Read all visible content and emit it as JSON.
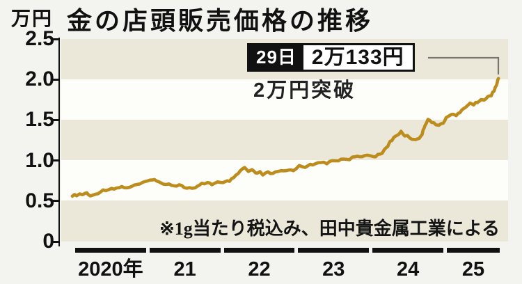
{
  "header": {
    "unit_label": "万円",
    "title": "金の店頭販売価格の推移"
  },
  "annotation": {
    "date_label": "29日",
    "price_label": "2万133円",
    "subtitle": "2万円突破"
  },
  "note": "※1g当たり税込み、田中貴金属工業による",
  "chart_data": {
    "type": "line",
    "title": "金の店頭販売価格の推移",
    "ylabel": "万円",
    "ylim": [
      0,
      2.5
    ],
    "yticks": [
      2.5,
      2.0,
      1.5,
      1.0,
      0.5,
      0
    ],
    "ytick_labels": [
      "2.5",
      "2.0",
      "1.5",
      "1.0",
      "0.5",
      "0"
    ],
    "xtick_labels": [
      "2020年",
      "21",
      "22",
      "23",
      "24",
      "25"
    ],
    "grid": "horizontal-bands",
    "band_colors": [
      "#ebe8d9",
      "#fdfdfa"
    ],
    "legend": false,
    "line_color": "#bc8c1d",
    "annotation_point": {
      "date": "29日",
      "value_label": "2万133円",
      "value": 2.0133,
      "note": "2万円突破"
    },
    "series": [
      {
        "name": "金の店頭販売価格",
        "points": [
          [
            2019.97,
            0.56
          ],
          [
            2020.03,
            0.575
          ],
          [
            2020.11,
            0.58
          ],
          [
            2020.17,
            0.6
          ],
          [
            2020.22,
            0.555
          ],
          [
            2020.29,
            0.585
          ],
          [
            2020.36,
            0.62
          ],
          [
            2020.43,
            0.64
          ],
          [
            2020.51,
            0.655
          ],
          [
            2020.58,
            0.66
          ],
          [
            2020.65,
            0.675
          ],
          [
            2020.72,
            0.665
          ],
          [
            2020.79,
            0.68
          ],
          [
            2020.86,
            0.7
          ],
          [
            2020.94,
            0.72
          ],
          [
            2021.0,
            0.745
          ],
          [
            2021.04,
            0.77
          ],
          [
            2021.1,
            0.76
          ],
          [
            2021.16,
            0.73
          ],
          [
            2021.22,
            0.72
          ],
          [
            2021.3,
            0.71
          ],
          [
            2021.37,
            0.69
          ],
          [
            2021.44,
            0.7
          ],
          [
            2021.51,
            0.67
          ],
          [
            2021.58,
            0.66
          ],
          [
            2021.66,
            0.655
          ],
          [
            2021.75,
            0.71
          ],
          [
            2021.83,
            0.73
          ],
          [
            2021.89,
            0.71
          ],
          [
            2021.97,
            0.73
          ],
          [
            2022.04,
            0.72
          ],
          [
            2022.13,
            0.75
          ],
          [
            2022.19,
            0.78
          ],
          [
            2022.25,
            0.84
          ],
          [
            2022.31,
            0.895
          ],
          [
            2022.34,
            0.91
          ],
          [
            2022.39,
            0.865
          ],
          [
            2022.44,
            0.88
          ],
          [
            2022.49,
            0.84
          ],
          [
            2022.55,
            0.855
          ],
          [
            2022.59,
            0.825
          ],
          [
            2022.66,
            0.85
          ],
          [
            2022.73,
            0.84
          ],
          [
            2022.8,
            0.86
          ],
          [
            2022.88,
            0.87
          ],
          [
            2022.95,
            0.88
          ],
          [
            2023.01,
            0.885
          ],
          [
            2023.09,
            0.93
          ],
          [
            2023.17,
            0.92
          ],
          [
            2023.24,
            0.96
          ],
          [
            2023.31,
            0.95
          ],
          [
            2023.39,
            0.975
          ],
          [
            2023.47,
            0.97
          ],
          [
            2023.55,
            0.99
          ],
          [
            2023.63,
            1.005
          ],
          [
            2023.7,
            1.02
          ],
          [
            2023.78,
            1.02
          ],
          [
            2023.86,
            1.05
          ],
          [
            2023.92,
            1.035
          ],
          [
            2023.99,
            1.06
          ],
          [
            2024.06,
            1.07
          ],
          [
            2024.11,
            1.045
          ],
          [
            2024.17,
            1.07
          ],
          [
            2024.23,
            1.1
          ],
          [
            2024.29,
            1.15
          ],
          [
            2024.34,
            1.23
          ],
          [
            2024.39,
            1.28
          ],
          [
            2024.44,
            1.32
          ],
          [
            2024.49,
            1.35
          ],
          [
            2024.54,
            1.31
          ],
          [
            2024.58,
            1.3
          ],
          [
            2024.64,
            1.27
          ],
          [
            2024.69,
            1.25
          ],
          [
            2024.74,
            1.28
          ],
          [
            2024.78,
            1.33
          ],
          [
            2024.82,
            1.44
          ],
          [
            2024.86,
            1.51
          ],
          [
            2024.91,
            1.48
          ],
          [
            2024.97,
            1.43
          ],
          [
            2025.01,
            1.44
          ],
          [
            2025.07,
            1.47
          ],
          [
            2025.11,
            1.53
          ],
          [
            2025.16,
            1.55
          ],
          [
            2025.21,
            1.58
          ],
          [
            2025.25,
            1.555
          ],
          [
            2025.3,
            1.59
          ],
          [
            2025.35,
            1.64
          ],
          [
            2025.4,
            1.68
          ],
          [
            2025.44,
            1.71
          ],
          [
            2025.49,
            1.69
          ],
          [
            2025.54,
            1.72
          ],
          [
            2025.59,
            1.76
          ],
          [
            2025.63,
            1.745
          ],
          [
            2025.68,
            1.78
          ],
          [
            2025.73,
            1.81
          ],
          [
            2025.77,
            1.87
          ],
          [
            2025.8,
            1.93
          ],
          [
            2025.83,
            2.0133
          ]
        ]
      }
    ]
  }
}
